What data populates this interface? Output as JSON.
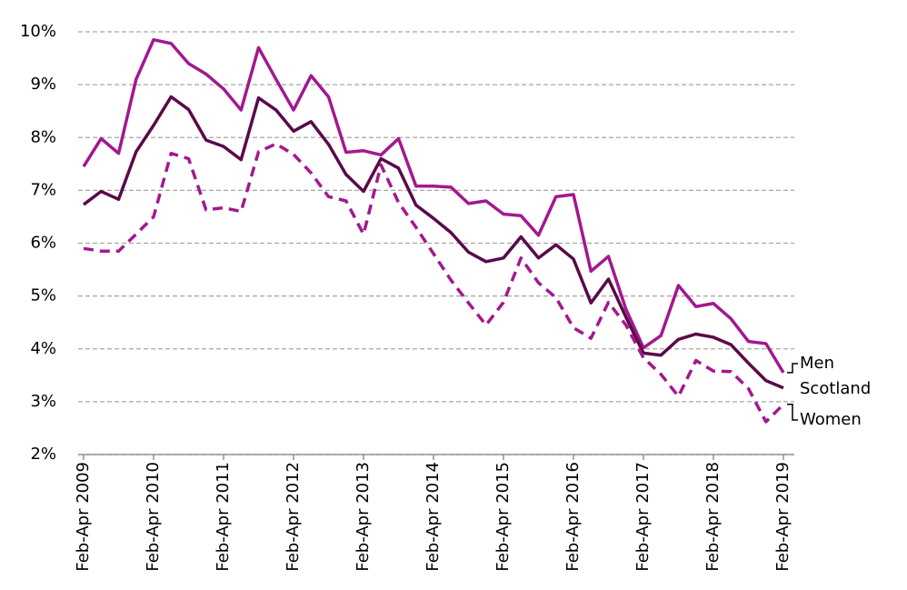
{
  "chart_data": {
    "type": "line",
    "categories": [
      "Feb-Apr 2009",
      null,
      null,
      null,
      "Feb-Apr 2010",
      null,
      null,
      null,
      "Feb-Apr 2011",
      null,
      null,
      null,
      "Feb-Apr 2012",
      null,
      null,
      null,
      "Feb-Apr 2013",
      null,
      null,
      null,
      "Feb-Apr 2014",
      null,
      null,
      null,
      "Feb-Apr 2015",
      null,
      null,
      null,
      "Feb-Apr 2016",
      null,
      null,
      null,
      "Feb-Apr 2017",
      null,
      null,
      null,
      "Feb-Apr 2018",
      null,
      null,
      null,
      "Feb-Apr 2019"
    ],
    "series": [
      {
        "name": "Men",
        "color": "#a3188f",
        "dashed": false,
        "values": [
          7.45,
          7.98,
          7.7,
          9.1,
          9.85,
          9.78,
          9.4,
          9.2,
          8.92,
          8.52,
          9.7,
          9.1,
          8.52,
          9.17,
          8.77,
          7.72,
          7.75,
          7.67,
          7.98,
          7.08,
          7.08,
          7.06,
          6.75,
          6.8,
          6.55,
          6.52,
          6.15,
          6.88,
          6.92,
          5.47,
          5.75,
          4.75,
          4.02,
          4.25,
          5.2,
          4.8,
          4.86,
          4.57,
          4.14,
          4.1,
          3.55
        ]
      },
      {
        "name": "Scotland",
        "color": "#5a0a48",
        "dashed": false,
        "values": [
          6.73,
          6.98,
          6.83,
          7.73,
          8.23,
          8.77,
          8.53,
          7.95,
          7.83,
          7.58,
          8.75,
          8.52,
          8.12,
          8.3,
          7.87,
          7.3,
          6.98,
          7.6,
          7.42,
          6.72,
          6.47,
          6.2,
          5.83,
          5.65,
          5.72,
          6.12,
          5.72,
          5.97,
          5.7,
          4.87,
          5.32,
          4.6,
          3.92,
          3.88,
          4.18,
          4.28,
          4.22,
          4.08,
          3.73,
          3.4,
          3.26
        ]
      },
      {
        "name": "Women",
        "color": "#a3188f",
        "dashed": true,
        "values": [
          5.9,
          5.85,
          5.85,
          6.17,
          6.5,
          7.7,
          7.6,
          6.63,
          6.67,
          6.6,
          7.73,
          7.88,
          7.68,
          7.33,
          6.88,
          6.8,
          6.17,
          7.48,
          6.77,
          6.3,
          5.8,
          5.3,
          4.87,
          4.45,
          4.88,
          5.72,
          5.25,
          4.97,
          4.4,
          4.2,
          4.88,
          4.45,
          3.83,
          3.52,
          3.1,
          3.78,
          3.58,
          3.57,
          3.25,
          2.62,
          2.95
        ]
      }
    ],
    "ylim": [
      2,
      10
    ],
    "yticks": [
      {
        "value": 2,
        "label": "2%"
      },
      {
        "value": 3,
        "label": "3%"
      },
      {
        "value": 4,
        "label": "4%"
      },
      {
        "value": 5,
        "label": "5%"
      },
      {
        "value": 6,
        "label": "6%"
      },
      {
        "value": 7,
        "label": "7%"
      },
      {
        "value": 8,
        "label": "8%"
      },
      {
        "value": 9,
        "label": "9%"
      },
      {
        "value": 10,
        "label": "10%"
      }
    ],
    "grid": true,
    "legend": "end-labels"
  }
}
